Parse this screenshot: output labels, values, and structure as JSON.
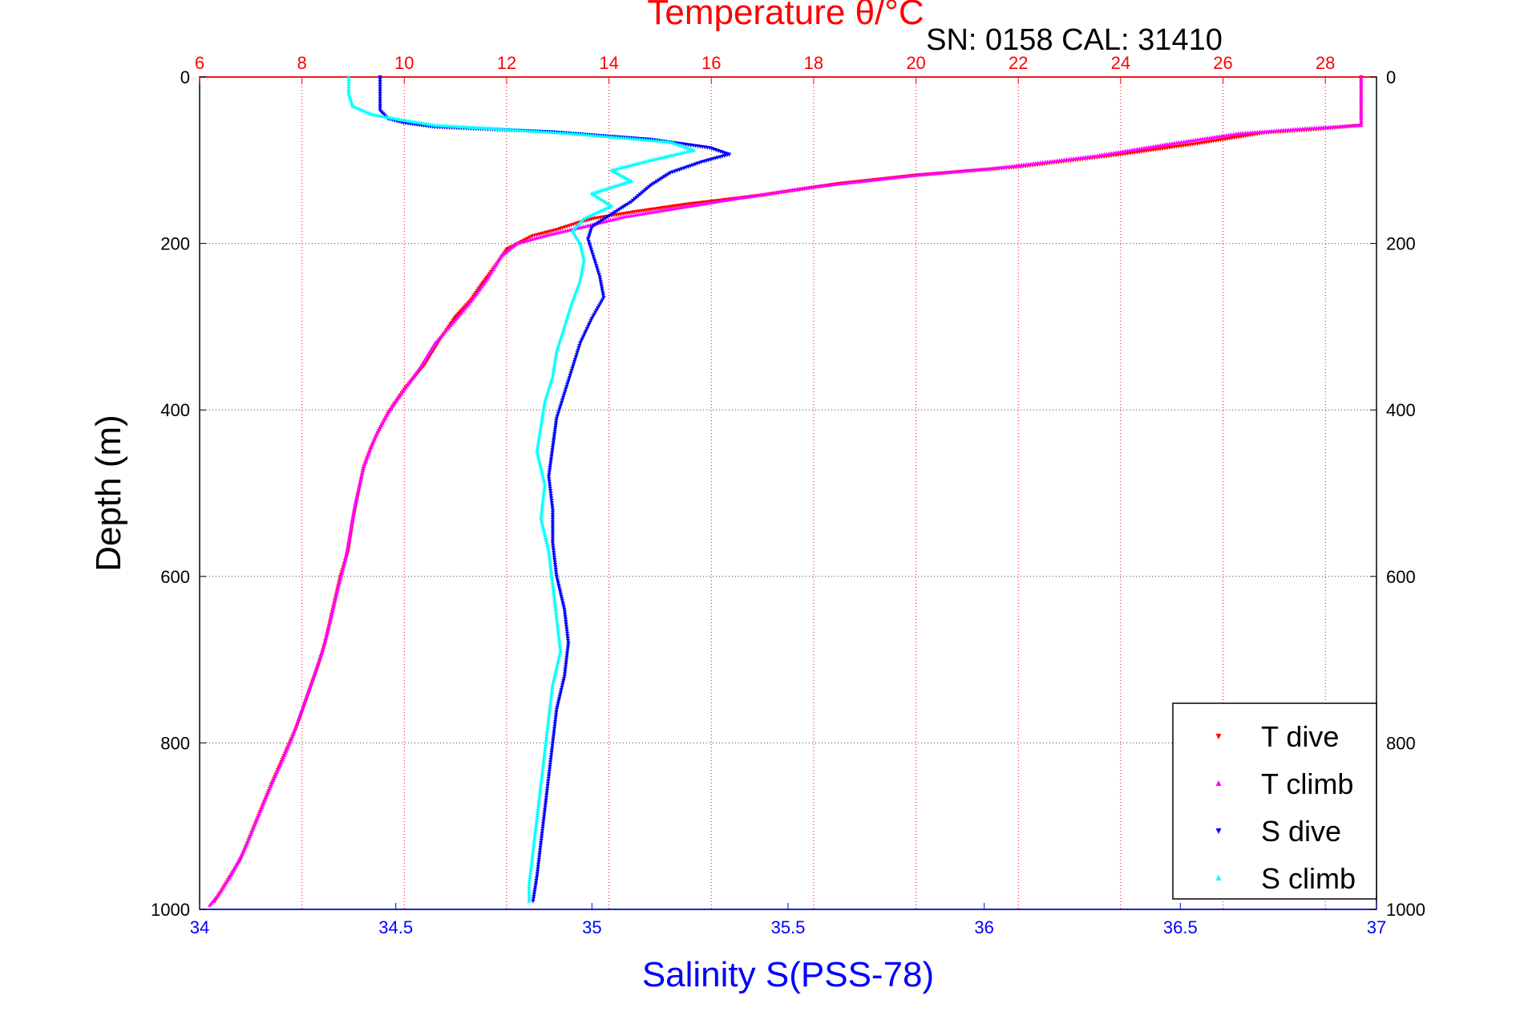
{
  "chart_data": {
    "type": "scatter",
    "title": "Temperature θ/°C",
    "subtitle": "SN: 0158  CAL: 31410",
    "ylabel": "Depth (m)",
    "xlabel": "Salinity S(PSS-78)",
    "ylim": [
      1000,
      0
    ],
    "y_ticks": [
      "0",
      "200",
      "400",
      "600",
      "800",
      "1000"
    ],
    "temp_axis": {
      "range": [
        6,
        29
      ],
      "ticks": [
        "6",
        "8",
        "10",
        "12",
        "14",
        "16",
        "18",
        "20",
        "22",
        "24",
        "26",
        "28"
      ],
      "color": "#ff0000"
    },
    "sal_axis": {
      "range": [
        34,
        37
      ],
      "ticks": [
        "34",
        "34.5",
        "35",
        "35.5",
        "36",
        "36.5",
        "37"
      ],
      "color": "#0000ff"
    },
    "grid": true,
    "legend_position": "bottom-right",
    "series": [
      {
        "name": "T dive",
        "axis": "temperature",
        "color": "#ff0000",
        "marker": "triangle-down",
        "points": [
          [
            28.7,
            0
          ],
          [
            28.7,
            30
          ],
          [
            28.7,
            58
          ],
          [
            28.0,
            62
          ],
          [
            26.8,
            67
          ],
          [
            25.5,
            80
          ],
          [
            24.0,
            93
          ],
          [
            22.0,
            108
          ],
          [
            20.0,
            118
          ],
          [
            18.5,
            128
          ],
          [
            17.0,
            142
          ],
          [
            15.5,
            153
          ],
          [
            14.5,
            162
          ],
          [
            13.7,
            170
          ],
          [
            13.4,
            175
          ],
          [
            13.0,
            183
          ],
          [
            12.5,
            191
          ],
          [
            12.0,
            207
          ],
          [
            11.8,
            225
          ],
          [
            11.5,
            250
          ],
          [
            11.3,
            268
          ],
          [
            11.0,
            288
          ],
          [
            10.7,
            315
          ],
          [
            10.4,
            345
          ],
          [
            10.0,
            375
          ],
          [
            9.7,
            402
          ],
          [
            9.5,
            425
          ],
          [
            9.35,
            445
          ],
          [
            9.2,
            470
          ],
          [
            9.1,
            500
          ],
          [
            9.0,
            530
          ],
          [
            8.9,
            570
          ],
          [
            8.75,
            600
          ],
          [
            8.6,
            640
          ],
          [
            8.45,
            680
          ],
          [
            8.3,
            710
          ],
          [
            8.1,
            745
          ],
          [
            7.9,
            780
          ],
          [
            7.65,
            815
          ],
          [
            7.4,
            850
          ],
          [
            7.2,
            880
          ],
          [
            7.0,
            910
          ],
          [
            6.8,
            940
          ],
          [
            6.55,
            965
          ],
          [
            6.3,
            990
          ]
        ]
      },
      {
        "name": "T climb",
        "axis": "temperature",
        "color": "#ff00ff",
        "marker": "triangle-up",
        "points": [
          [
            28.7,
            0
          ],
          [
            28.7,
            30
          ],
          [
            28.7,
            58
          ],
          [
            27.6,
            62
          ],
          [
            26.3,
            68
          ],
          [
            25.0,
            80
          ],
          [
            23.5,
            95
          ],
          [
            21.5,
            110
          ],
          [
            20.0,
            118
          ],
          [
            18.0,
            132
          ],
          [
            16.5,
            146
          ],
          [
            15.3,
            158
          ],
          [
            14.3,
            168
          ],
          [
            13.5,
            180
          ],
          [
            12.8,
            190
          ],
          [
            12.2,
            200
          ],
          [
            11.9,
            215
          ],
          [
            11.6,
            245
          ],
          [
            11.3,
            270
          ],
          [
            11.0,
            292
          ],
          [
            10.6,
            320
          ],
          [
            10.3,
            350
          ],
          [
            9.95,
            380
          ],
          [
            9.7,
            402
          ],
          [
            9.45,
            430
          ],
          [
            9.35,
            445
          ],
          [
            9.2,
            470
          ],
          [
            9.05,
            510
          ],
          [
            8.95,
            545
          ],
          [
            8.85,
            580
          ],
          [
            8.7,
            615
          ],
          [
            8.55,
            655
          ],
          [
            8.4,
            690
          ],
          [
            8.2,
            725
          ],
          [
            8.0,
            760
          ],
          [
            7.8,
            795
          ],
          [
            7.55,
            830
          ],
          [
            7.3,
            865
          ],
          [
            7.1,
            895
          ],
          [
            6.9,
            925
          ],
          [
            6.65,
            955
          ],
          [
            6.4,
            980
          ],
          [
            6.2,
            995
          ]
        ]
      },
      {
        "name": "S dive",
        "axis": "salinity",
        "color": "#0000ff",
        "marker": "triangle-down",
        "points": [
          [
            34.46,
            0
          ],
          [
            34.46,
            20
          ],
          [
            34.46,
            40
          ],
          [
            34.48,
            50
          ],
          [
            34.52,
            55
          ],
          [
            34.6,
            60
          ],
          [
            34.9,
            66
          ],
          [
            35.15,
            75
          ],
          [
            35.3,
            85
          ],
          [
            35.35,
            93
          ],
          [
            35.28,
            102
          ],
          [
            35.2,
            115
          ],
          [
            35.15,
            130
          ],
          [
            35.1,
            150
          ],
          [
            35.05,
            165
          ],
          [
            35.0,
            180
          ],
          [
            34.99,
            195
          ],
          [
            35.0,
            210
          ],
          [
            35.02,
            240
          ],
          [
            35.03,
            265
          ],
          [
            35.0,
            290
          ],
          [
            34.97,
            320
          ],
          [
            34.95,
            350
          ],
          [
            34.93,
            380
          ],
          [
            34.91,
            410
          ],
          [
            34.9,
            445
          ],
          [
            34.89,
            480
          ],
          [
            34.9,
            520
          ],
          [
            34.9,
            560
          ],
          [
            34.91,
            600
          ],
          [
            34.93,
            640
          ],
          [
            34.94,
            680
          ],
          [
            34.93,
            720
          ],
          [
            34.91,
            760
          ],
          [
            34.9,
            800
          ],
          [
            34.89,
            840
          ],
          [
            34.88,
            880
          ],
          [
            34.87,
            920
          ],
          [
            34.86,
            960
          ],
          [
            34.85,
            990
          ]
        ]
      },
      {
        "name": "S climb",
        "axis": "salinity",
        "color": "#00ffff",
        "marker": "triangle-up",
        "points": [
          [
            34.38,
            0
          ],
          [
            34.38,
            20
          ],
          [
            34.39,
            35
          ],
          [
            34.44,
            45
          ],
          [
            34.52,
            52
          ],
          [
            34.6,
            58
          ],
          [
            34.75,
            62
          ],
          [
            34.95,
            68
          ],
          [
            35.05,
            72
          ],
          [
            35.2,
            78
          ],
          [
            35.26,
            88
          ],
          [
            35.15,
            100
          ],
          [
            35.05,
            112
          ],
          [
            35.1,
            125
          ],
          [
            35.0,
            140
          ],
          [
            35.05,
            155
          ],
          [
            34.98,
            170
          ],
          [
            34.95,
            185
          ],
          [
            34.97,
            200
          ],
          [
            34.98,
            220
          ],
          [
            34.97,
            245
          ],
          [
            34.95,
            270
          ],
          [
            34.93,
            300
          ],
          [
            34.91,
            330
          ],
          [
            34.9,
            360
          ],
          [
            34.88,
            390
          ],
          [
            34.87,
            420
          ],
          [
            34.86,
            450
          ],
          [
            34.88,
            490
          ],
          [
            34.87,
            530
          ],
          [
            34.89,
            570
          ],
          [
            34.9,
            610
          ],
          [
            34.91,
            650
          ],
          [
            34.92,
            690
          ],
          [
            34.9,
            730
          ],
          [
            34.89,
            770
          ],
          [
            34.88,
            810
          ],
          [
            34.87,
            850
          ],
          [
            34.86,
            890
          ],
          [
            34.85,
            930
          ],
          [
            34.84,
            970
          ],
          [
            34.84,
            990
          ]
        ]
      }
    ]
  }
}
